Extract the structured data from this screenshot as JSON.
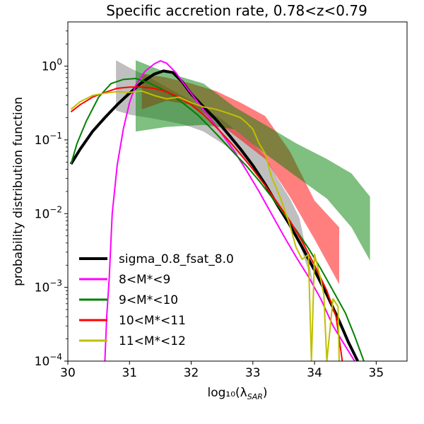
{
  "chart_data": {
    "type": "line",
    "title": "Specific accretion rate, 0.78<z<0.79",
    "xlabel": "log₁₀(λ",
    "xlabel_sub": "SAR",
    "xlabel_close": ")",
    "ylabel": "probability distribution function",
    "xlim": [
      30,
      35.5
    ],
    "ylim_log10": [
      -4,
      0.6
    ],
    "yscale": "log",
    "xticks": [
      30,
      31,
      32,
      33,
      34,
      35
    ],
    "xtick_labels": [
      "30",
      "31",
      "32",
      "33",
      "34",
      "35"
    ],
    "yticks_log10": [
      -4,
      -3,
      -2,
      -1,
      0
    ],
    "ytick_labels": [
      {
        "base": "10",
        "exp": "−4"
      },
      {
        "base": "10",
        "exp": "−3"
      },
      {
        "base": "10",
        "exp": "−2"
      },
      {
        "base": "10",
        "exp": "−1"
      },
      {
        "base": "10",
        "exp": "0"
      }
    ],
    "legend_position": "lower-left",
    "series": [
      {
        "name": "sigma_0.8_fsat_8.0",
        "color": "#000000",
        "linewidth": 4,
        "points": [
          [
            30.05,
            0.047
          ],
          [
            30.2,
            0.075
          ],
          [
            30.4,
            0.13
          ],
          [
            30.6,
            0.2
          ],
          [
            30.8,
            0.3
          ],
          [
            31.0,
            0.43
          ],
          [
            31.2,
            0.6
          ],
          [
            31.4,
            0.78
          ],
          [
            31.55,
            0.86
          ],
          [
            31.7,
            0.82
          ],
          [
            31.85,
            0.62
          ],
          [
            32.0,
            0.42
          ],
          [
            32.2,
            0.28
          ],
          [
            32.4,
            0.19
          ],
          [
            32.6,
            0.12
          ],
          [
            32.8,
            0.075
          ],
          [
            33.0,
            0.045
          ],
          [
            33.2,
            0.025
          ],
          [
            33.4,
            0.013
          ],
          [
            33.6,
            0.007
          ],
          [
            33.8,
            0.0035
          ],
          [
            34.0,
            0.0017
          ],
          [
            34.2,
            0.0008
          ],
          [
            34.4,
            0.00035
          ],
          [
            34.55,
            0.00018
          ],
          [
            34.7,
            0.0001
          ]
        ]
      },
      {
        "name": "8<M*<9",
        "color": "#ff00ff",
        "linewidth": 2,
        "points": [
          [
            30.6,
            0.0001
          ],
          [
            30.63,
            0.0004
          ],
          [
            30.67,
            0.0013
          ],
          [
            30.72,
            0.01
          ],
          [
            30.8,
            0.045
          ],
          [
            30.9,
            0.14
          ],
          [
            31.0,
            0.32
          ],
          [
            31.1,
            0.55
          ],
          [
            31.25,
            0.85
          ],
          [
            31.4,
            1.07
          ],
          [
            31.5,
            1.18
          ],
          [
            31.6,
            1.1
          ],
          [
            31.75,
            0.82
          ],
          [
            31.9,
            0.55
          ],
          [
            32.1,
            0.33
          ],
          [
            32.3,
            0.2
          ],
          [
            32.5,
            0.12
          ],
          [
            32.7,
            0.07
          ],
          [
            32.9,
            0.038
          ],
          [
            33.1,
            0.02
          ],
          [
            33.3,
            0.01
          ],
          [
            33.5,
            0.005
          ],
          [
            33.7,
            0.0026
          ],
          [
            33.9,
            0.0014
          ],
          [
            34.1,
            0.0007
          ],
          [
            34.3,
            0.0003
          ],
          [
            34.5,
            0.00016
          ],
          [
            34.65,
            0.0001
          ]
        ]
      },
      {
        "name": "9<M*<10",
        "color": "#008000",
        "linewidth": 2,
        "points": [
          [
            30.05,
            0.047
          ],
          [
            30.15,
            0.09
          ],
          [
            30.3,
            0.18
          ],
          [
            30.5,
            0.38
          ],
          [
            30.7,
            0.58
          ],
          [
            30.9,
            0.66
          ],
          [
            31.1,
            0.68
          ],
          [
            31.3,
            0.6
          ],
          [
            31.5,
            0.5
          ],
          [
            31.7,
            0.4
          ],
          [
            31.9,
            0.3
          ],
          [
            32.1,
            0.22
          ],
          [
            32.3,
            0.15
          ],
          [
            32.5,
            0.1
          ],
          [
            32.7,
            0.066
          ],
          [
            32.9,
            0.044
          ],
          [
            33.1,
            0.028
          ],
          [
            33.3,
            0.017
          ],
          [
            33.5,
            0.01
          ],
          [
            33.7,
            0.006
          ],
          [
            33.9,
            0.0034
          ],
          [
            34.1,
            0.0018
          ],
          [
            34.3,
            0.0009
          ],
          [
            34.5,
            0.00045
          ],
          [
            34.65,
            0.00022
          ],
          [
            34.8,
            0.0001
          ]
        ]
      },
      {
        "name": "10<M*<11",
        "color": "#ff0000",
        "linewidth": 2,
        "points": [
          [
            30.05,
            0.24
          ],
          [
            30.2,
            0.3
          ],
          [
            30.4,
            0.38
          ],
          [
            30.6,
            0.44
          ],
          [
            30.8,
            0.5
          ],
          [
            31.0,
            0.52
          ],
          [
            31.2,
            0.52
          ],
          [
            31.4,
            0.5
          ],
          [
            31.6,
            0.45
          ],
          [
            31.8,
            0.38
          ],
          [
            32.0,
            0.3
          ],
          [
            32.2,
            0.22
          ],
          [
            32.4,
            0.15
          ],
          [
            32.6,
            0.1
          ],
          [
            32.8,
            0.064
          ],
          [
            33.0,
            0.04
          ],
          [
            33.2,
            0.024
          ],
          [
            33.4,
            0.014
          ],
          [
            33.6,
            0.008
          ],
          [
            33.8,
            0.0042
          ],
          [
            34.0,
            0.002
          ],
          [
            34.2,
            0.0009
          ],
          [
            34.35,
            0.0004
          ],
          [
            34.45,
            0.0001
          ]
        ]
      },
      {
        "name": "11<M*<12",
        "color": "#bfbf00",
        "linewidth": 2,
        "points": [
          [
            30.05,
            0.26
          ],
          [
            30.2,
            0.33
          ],
          [
            30.4,
            0.4
          ],
          [
            30.6,
            0.43
          ],
          [
            30.8,
            0.45
          ],
          [
            31.0,
            0.44
          ],
          [
            31.2,
            0.46
          ],
          [
            31.4,
            0.4
          ],
          [
            31.6,
            0.36
          ],
          [
            31.8,
            0.38
          ],
          [
            32.0,
            0.32
          ],
          [
            32.2,
            0.28
          ],
          [
            32.4,
            0.26
          ],
          [
            32.6,
            0.23
          ],
          [
            32.8,
            0.2
          ],
          [
            32.9,
            0.17
          ],
          [
            33.0,
            0.14
          ],
          [
            33.1,
            0.09
          ],
          [
            33.2,
            0.065
          ],
          [
            33.3,
            0.032
          ],
          [
            33.45,
            0.016
          ],
          [
            33.6,
            0.007
          ],
          [
            33.7,
            0.0035
          ],
          [
            33.8,
            0.0024
          ],
          [
            33.9,
            0.0028
          ],
          [
            33.95,
            0.0001
          ],
          [
            34.0,
            0.0028
          ],
          [
            34.1,
            0.0013
          ],
          [
            34.15,
            0.0008
          ],
          [
            34.2,
            0.0001
          ],
          [
            34.3,
            0.0007
          ],
          [
            34.38,
            0.00055
          ],
          [
            34.4,
            0.0001
          ]
        ]
      }
    ],
    "bands": [
      {
        "color": "#808080",
        "opacity": 0.5,
        "points": [
          [
            30.78,
            1.2
          ],
          [
            31.0,
            0.95
          ],
          [
            31.3,
            0.72
          ],
          [
            31.6,
            0.52
          ],
          [
            31.9,
            0.38
          ],
          [
            32.2,
            0.27
          ],
          [
            32.5,
            0.19
          ],
          [
            32.8,
            0.12
          ],
          [
            33.0,
            0.09
          ],
          [
            33.2,
            0.06
          ],
          [
            33.4,
            0.03
          ],
          [
            33.6,
            0.016
          ],
          [
            33.75,
            0.009
          ],
          [
            33.9,
            0.0024
          ],
          [
            34.0,
            0.0009
          ]
        ],
        "lower": [
          [
            30.78,
            0.25
          ],
          [
            31.0,
            0.22
          ],
          [
            31.3,
            0.2
          ],
          [
            31.6,
            0.18
          ],
          [
            31.9,
            0.16
          ],
          [
            32.2,
            0.13
          ],
          [
            32.5,
            0.09
          ],
          [
            32.8,
            0.06
          ],
          [
            33.0,
            0.04
          ],
          [
            33.2,
            0.025
          ],
          [
            33.4,
            0.014
          ],
          [
            33.6,
            0.007
          ],
          [
            33.75,
            0.004
          ],
          [
            33.9,
            0.0017
          ],
          [
            34.0,
            0.0009
          ]
        ]
      },
      {
        "color": "#ff0000",
        "opacity": 0.5,
        "points": [
          [
            31.2,
            0.8
          ],
          [
            31.6,
            0.7
          ],
          [
            32.0,
            0.58
          ],
          [
            32.4,
            0.46
          ],
          [
            32.8,
            0.32
          ],
          [
            33.2,
            0.21
          ],
          [
            33.6,
            0.07
          ],
          [
            34.0,
            0.015
          ],
          [
            34.4,
            0.0065
          ]
        ],
        "lower": [
          [
            31.2,
            0.26
          ],
          [
            31.6,
            0.34
          ],
          [
            32.0,
            0.3
          ],
          [
            32.4,
            0.18
          ],
          [
            32.8,
            0.1
          ],
          [
            33.2,
            0.055
          ],
          [
            33.6,
            0.017
          ],
          [
            34.0,
            0.0045
          ],
          [
            34.4,
            0.0011
          ]
        ]
      },
      {
        "color": "#008000",
        "opacity": 0.5,
        "points": [
          [
            31.1,
            1.2
          ],
          [
            31.6,
            0.82
          ],
          [
            32.2,
            0.58
          ],
          [
            32.7,
            0.28
          ],
          [
            33.2,
            0.16
          ],
          [
            33.7,
            0.09
          ],
          [
            34.2,
            0.055
          ],
          [
            34.6,
            0.035
          ],
          [
            34.9,
            0.017
          ]
        ],
        "lower": [
          [
            31.1,
            0.13
          ],
          [
            31.6,
            0.15
          ],
          [
            32.2,
            0.16
          ],
          [
            32.7,
            0.14
          ],
          [
            33.2,
            0.065
          ],
          [
            33.7,
            0.032
          ],
          [
            34.2,
            0.016
          ],
          [
            34.6,
            0.0065
          ],
          [
            34.9,
            0.0023
          ]
        ]
      }
    ]
  }
}
